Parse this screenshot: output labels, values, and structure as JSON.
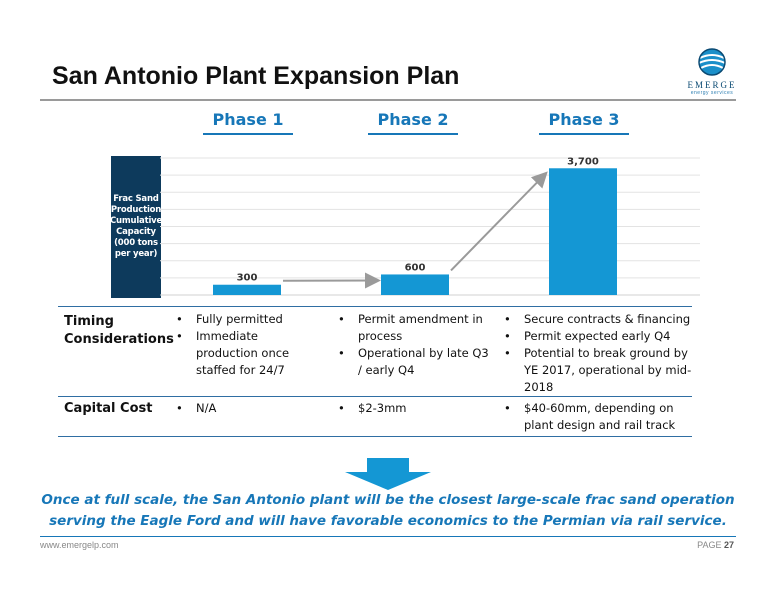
{
  "slide": {
    "title": "San Antonio Plant Expansion Plan",
    "logo": {
      "name": "EMERGE",
      "tagline": "energy services",
      "icon": "globe-wave-icon",
      "color": "#0a4a73"
    }
  },
  "phases": [
    "Phase 1",
    "Phase 2",
    "Phase 3"
  ],
  "chart_data": {
    "type": "bar",
    "categories": [
      "Phase 1",
      "Phase 2",
      "Phase 3"
    ],
    "values": [
      300,
      600,
      3700
    ],
    "data_labels": [
      "300",
      "600",
      "3,700"
    ],
    "ylabel": "Frac Sand Production Cumulative Capacity (000 tons per year)",
    "ylim": [
      0,
      4000
    ],
    "grid": true,
    "bar_color": "#1497d4",
    "connector_arrows": true
  },
  "table": {
    "rows": [
      {
        "header": "Timing Considerations",
        "cells": [
          [
            "Fully permitted",
            "Immediate production once staffed for 24/7"
          ],
          [
            "Permit amendment in process",
            "Operational by late Q3 / early Q4"
          ],
          [
            "Secure contracts & financing",
            "Permit expected early Q4",
            "Potential to break ground by YE 2017, operational by mid-2018"
          ]
        ]
      },
      {
        "header": "Capital Cost",
        "cells": [
          [
            "N/A"
          ],
          [
            "$2-3mm"
          ],
          [
            "$40-60mm, depending on plant design and rail track"
          ]
        ]
      }
    ]
  },
  "conclusion": {
    "line1": "Once at full scale, the San Antonio plant will be the closest large-scale frac sand operation",
    "line2": "serving the Eagle Ford and will have favorable economics to the Permian via rail service."
  },
  "footer": {
    "url": "www.emergelp.com",
    "page_label": "PAGE",
    "page_number": "27"
  }
}
